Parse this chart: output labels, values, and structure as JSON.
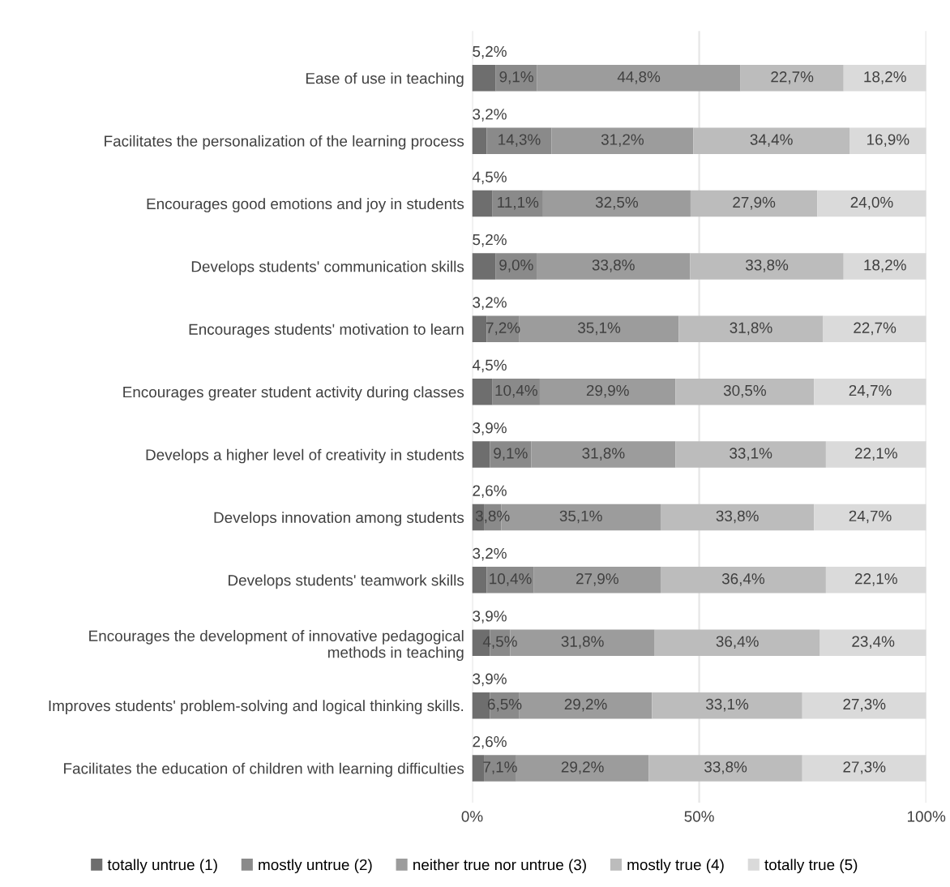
{
  "chart_data": {
    "type": "bar",
    "orientation": "horizontal",
    "stacked": true,
    "categories": [
      "Ease of use in teaching",
      "Facilitates the personalization of the learning process",
      "Encourages good emotions and joy in students",
      "Develops students' communication skills",
      "Encourages students' motivation to learn",
      "Encourages greater student activity during classes",
      "Develops a higher level of creativity in students",
      "Develops innovation among students",
      "Develops students' teamwork skills",
      "Encourages the development of innovative pedagogical\nmethods in teaching",
      "Improves students' problem-solving and logical thinking skills.",
      "Facilitates the education of children with learning difficulties"
    ],
    "series": [
      {
        "name": "totally untrue (1)",
        "color": "#6e6e6e",
        "values": [
          5.2,
          3.2,
          4.5,
          5.2,
          3.2,
          4.5,
          3.9,
          2.6,
          3.2,
          3.9,
          3.9,
          2.6
        ],
        "value_labels": [
          "5,2%",
          "3,2%",
          "4,5%",
          "5,2%",
          "3,2%",
          "4,5%",
          "3,9%",
          "2,6%",
          "3,2%",
          "3,9%",
          "3,9%",
          "2,6%"
        ]
      },
      {
        "name": "mostly untrue (2)",
        "color": "#8a8a8a",
        "values": [
          9.1,
          14.3,
          11.1,
          9.0,
          7.2,
          10.4,
          9.1,
          3.8,
          10.4,
          4.5,
          6.5,
          7.1
        ],
        "value_labels": [
          "9,1%",
          "14,3%",
          "11,1%",
          "9,0%",
          "7,2%",
          "10,4%",
          "9,1%",
          "3,8%",
          "10,4%",
          "4,5%",
          "6,5%",
          "7,1%"
        ]
      },
      {
        "name": "neither true nor untrue (3)",
        "color": "#9c9c9c",
        "values": [
          44.8,
          31.2,
          32.5,
          33.8,
          35.1,
          29.9,
          31.8,
          35.1,
          27.9,
          31.8,
          29.2,
          29.2
        ],
        "value_labels": [
          "44,8%",
          "31,2%",
          "32,5%",
          "33,8%",
          "35,1%",
          "29,9%",
          "31,8%",
          "35,1%",
          "27,9%",
          "31,8%",
          "29,2%",
          "29,2%"
        ]
      },
      {
        "name": "mostly true (4)",
        "color": "#bcbcbc",
        "values": [
          22.7,
          34.4,
          27.9,
          33.8,
          31.8,
          30.5,
          33.1,
          33.8,
          36.4,
          36.4,
          33.1,
          33.8
        ],
        "value_labels": [
          "22,7%",
          "34,4%",
          "27,9%",
          "33,8%",
          "31,8%",
          "30,5%",
          "33,1%",
          "33,8%",
          "36,4%",
          "36,4%",
          "33,1%",
          "33,8%"
        ]
      },
      {
        "name": "totally true (5)",
        "color": "#dadada",
        "values": [
          18.2,
          16.9,
          24.0,
          18.2,
          22.7,
          24.7,
          22.1,
          24.7,
          22.1,
          23.4,
          27.3,
          27.3
        ],
        "value_labels": [
          "18,2%",
          "16,9%",
          "24,0%",
          "18,2%",
          "22,7%",
          "24,7%",
          "22,1%",
          "24,7%",
          "22,1%",
          "23,4%",
          "27,3%",
          "27,3%"
        ]
      }
    ],
    "xlim": [
      0,
      100
    ],
    "xticks": [
      {
        "value": 0,
        "label": "0%"
      },
      {
        "value": 50,
        "label": "50%"
      },
      {
        "value": 100,
        "label": "100%"
      }
    ],
    "grid": "x",
    "legend": "bottom"
  }
}
